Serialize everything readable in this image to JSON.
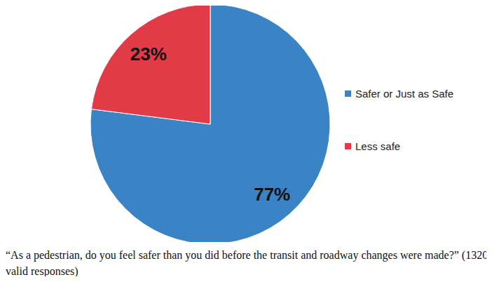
{
  "chart_data": {
    "type": "pie",
    "title": "“As a pedestrian, do you feel safer than you did before the transit and roadway changes were made?” (1320 valid responses)",
    "categories": [
      "Safer or Just as Safe",
      "Less safe"
    ],
    "values": [
      77,
      23
    ],
    "value_labels": [
      "77%",
      "23%"
    ],
    "colors": [
      "#3a83c4",
      "#e23b48"
    ],
    "data_labels": true,
    "legend": "right"
  }
}
